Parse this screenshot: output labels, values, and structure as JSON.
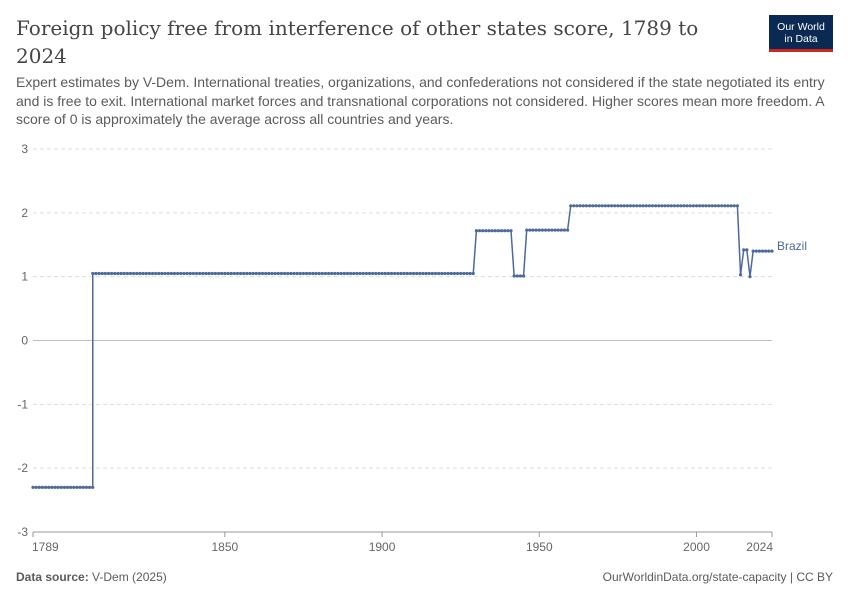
{
  "header": {
    "title": "Foreign policy free from interference of other states score, 1789 to 2024",
    "subtitle": "Expert estimates by V-Dem. International treaties, organizations, and confederations not considered if the state negotiated its entry and is free to exit. International market forces and transnational corporations not considered. Higher scores mean more freedom. A score of 0 is approximately the average across all countries and years."
  },
  "logo": {
    "line1": "Our World",
    "line2": "in Data",
    "bg_color": "#0b2a53",
    "accent_color": "#ce261e"
  },
  "footer": {
    "source_label": "Data source:",
    "source_value": "V-Dem (2025)",
    "right_text": "OurWorldinData.org/state-capacity | CC BY"
  },
  "chart_data": {
    "type": "line",
    "xlim": [
      1789,
      2024
    ],
    "ylim": [
      -3,
      3
    ],
    "y_ticks": [
      3,
      2,
      1,
      0,
      -1,
      -2,
      -3
    ],
    "x_ticks": [
      1789,
      1850,
      1900,
      1950,
      2000,
      2024
    ],
    "grid": "horizontal dashed",
    "line_color": "#4c6a9c",
    "series": [
      {
        "name": "Brazil",
        "segments": [
          {
            "from": 1789,
            "to": 1808,
            "value": -2.3
          },
          {
            "from": 1808,
            "to": 1929,
            "value": 1.05
          },
          {
            "from": 1930,
            "to": 1941,
            "value": 1.72
          },
          {
            "from": 1942,
            "to": 1945,
            "value": 1.01
          },
          {
            "from": 1946,
            "to": 1959,
            "value": 1.73
          },
          {
            "from": 1960,
            "to": 2013,
            "value": 2.11
          },
          {
            "from": 2014,
            "to": 2014,
            "value": 1.03
          },
          {
            "from": 2015,
            "to": 2016,
            "value": 1.42
          },
          {
            "from": 2017,
            "to": 2017,
            "value": 1.0
          },
          {
            "from": 2018,
            "to": 2024,
            "value": 1.4
          }
        ]
      }
    ]
  }
}
